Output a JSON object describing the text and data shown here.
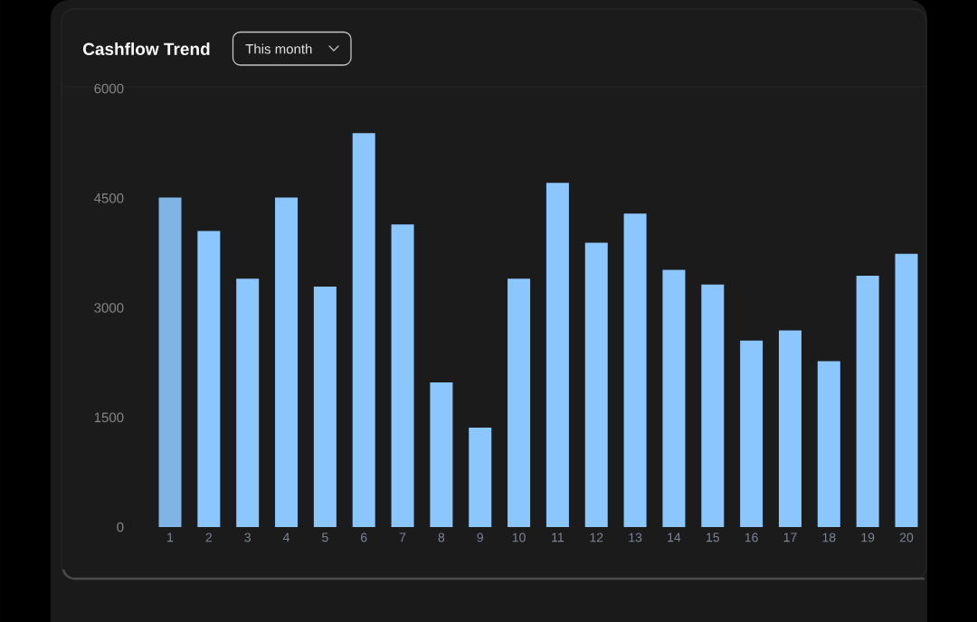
{
  "chart_data": {
    "type": "bar",
    "title": "Cashflow Trend",
    "subtitle": "This month",
    "categories": [
      "1",
      "2",
      "3",
      "4",
      "5",
      "6",
      "7",
      "8",
      "9",
      "10",
      "11",
      "12",
      "13",
      "14",
      "15",
      "16",
      "17",
      "18",
      "19",
      "20"
    ],
    "values": [
      4510,
      4050,
      3400,
      4510,
      3290,
      5390,
      4140,
      1980,
      1360,
      3400,
      4710,
      3890,
      4290,
      3520,
      3320,
      2550,
      2690,
      2270,
      3440,
      3740
    ],
    "colors": [
      "#80b4e4",
      "#8cc6ff",
      "#8cc6ff",
      "#8cc6ff",
      "#8cc6ff",
      "#8cc6ff",
      "#8cc6ff",
      "#8cc6ff",
      "#8cc6ff",
      "#8cc6ff",
      "#8cc6ff",
      "#8cc6ff",
      "#8cc6ff",
      "#8cc6ff",
      "#8cc6ff",
      "#8cc6ff",
      "#8cc6ff",
      "#8cc6ff",
      "#8cc6ff",
      "#8cc6ff"
    ],
    "ylim": [
      0,
      6000
    ],
    "yticks": [
      0,
      1500,
      3000,
      4500,
      6000
    ]
  }
}
